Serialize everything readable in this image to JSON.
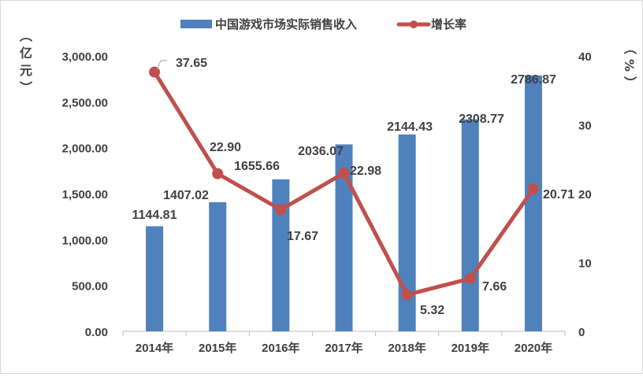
{
  "chart_data": {
    "type": "bar+line",
    "categories": [
      "2014年",
      "2015年",
      "2016年",
      "2017年",
      "2018年",
      "2019年",
      "2020年"
    ],
    "series": [
      {
        "name": "中国游戏市场实际销售收入",
        "type": "bar",
        "axis": "left",
        "color": "#4f81bd",
        "values": [
          1144.81,
          1407.02,
          1655.66,
          2036.07,
          2144.43,
          2308.77,
          2786.87
        ],
        "labels": [
          "1144.81",
          "1407.02",
          "1655.66",
          "2036.07",
          "2144.43",
          "2308.77",
          "2786.87"
        ]
      },
      {
        "name": "增长率",
        "type": "line",
        "axis": "right",
        "color": "#c0504d",
        "values": [
          37.65,
          22.9,
          17.67,
          22.98,
          5.32,
          7.66,
          20.71
        ],
        "labels": [
          "37.65",
          "22.90",
          "17.67",
          "22.98",
          "5.32",
          "7.66",
          "20.71"
        ]
      }
    ],
    "ylabel_left": "（亿元）",
    "ylabel_right": "（%）",
    "ylim_left": [
      0,
      3000
    ],
    "yticks_left": [
      "0.00",
      "500.00",
      "1,000.00",
      "1,500.00",
      "2,000.00",
      "2,500.00",
      "3,000.00"
    ],
    "ylim_right": [
      0,
      40
    ],
    "yticks_right": [
      "0",
      "10",
      "20",
      "30",
      "40"
    ],
    "legend": "top",
    "grid": false
  }
}
